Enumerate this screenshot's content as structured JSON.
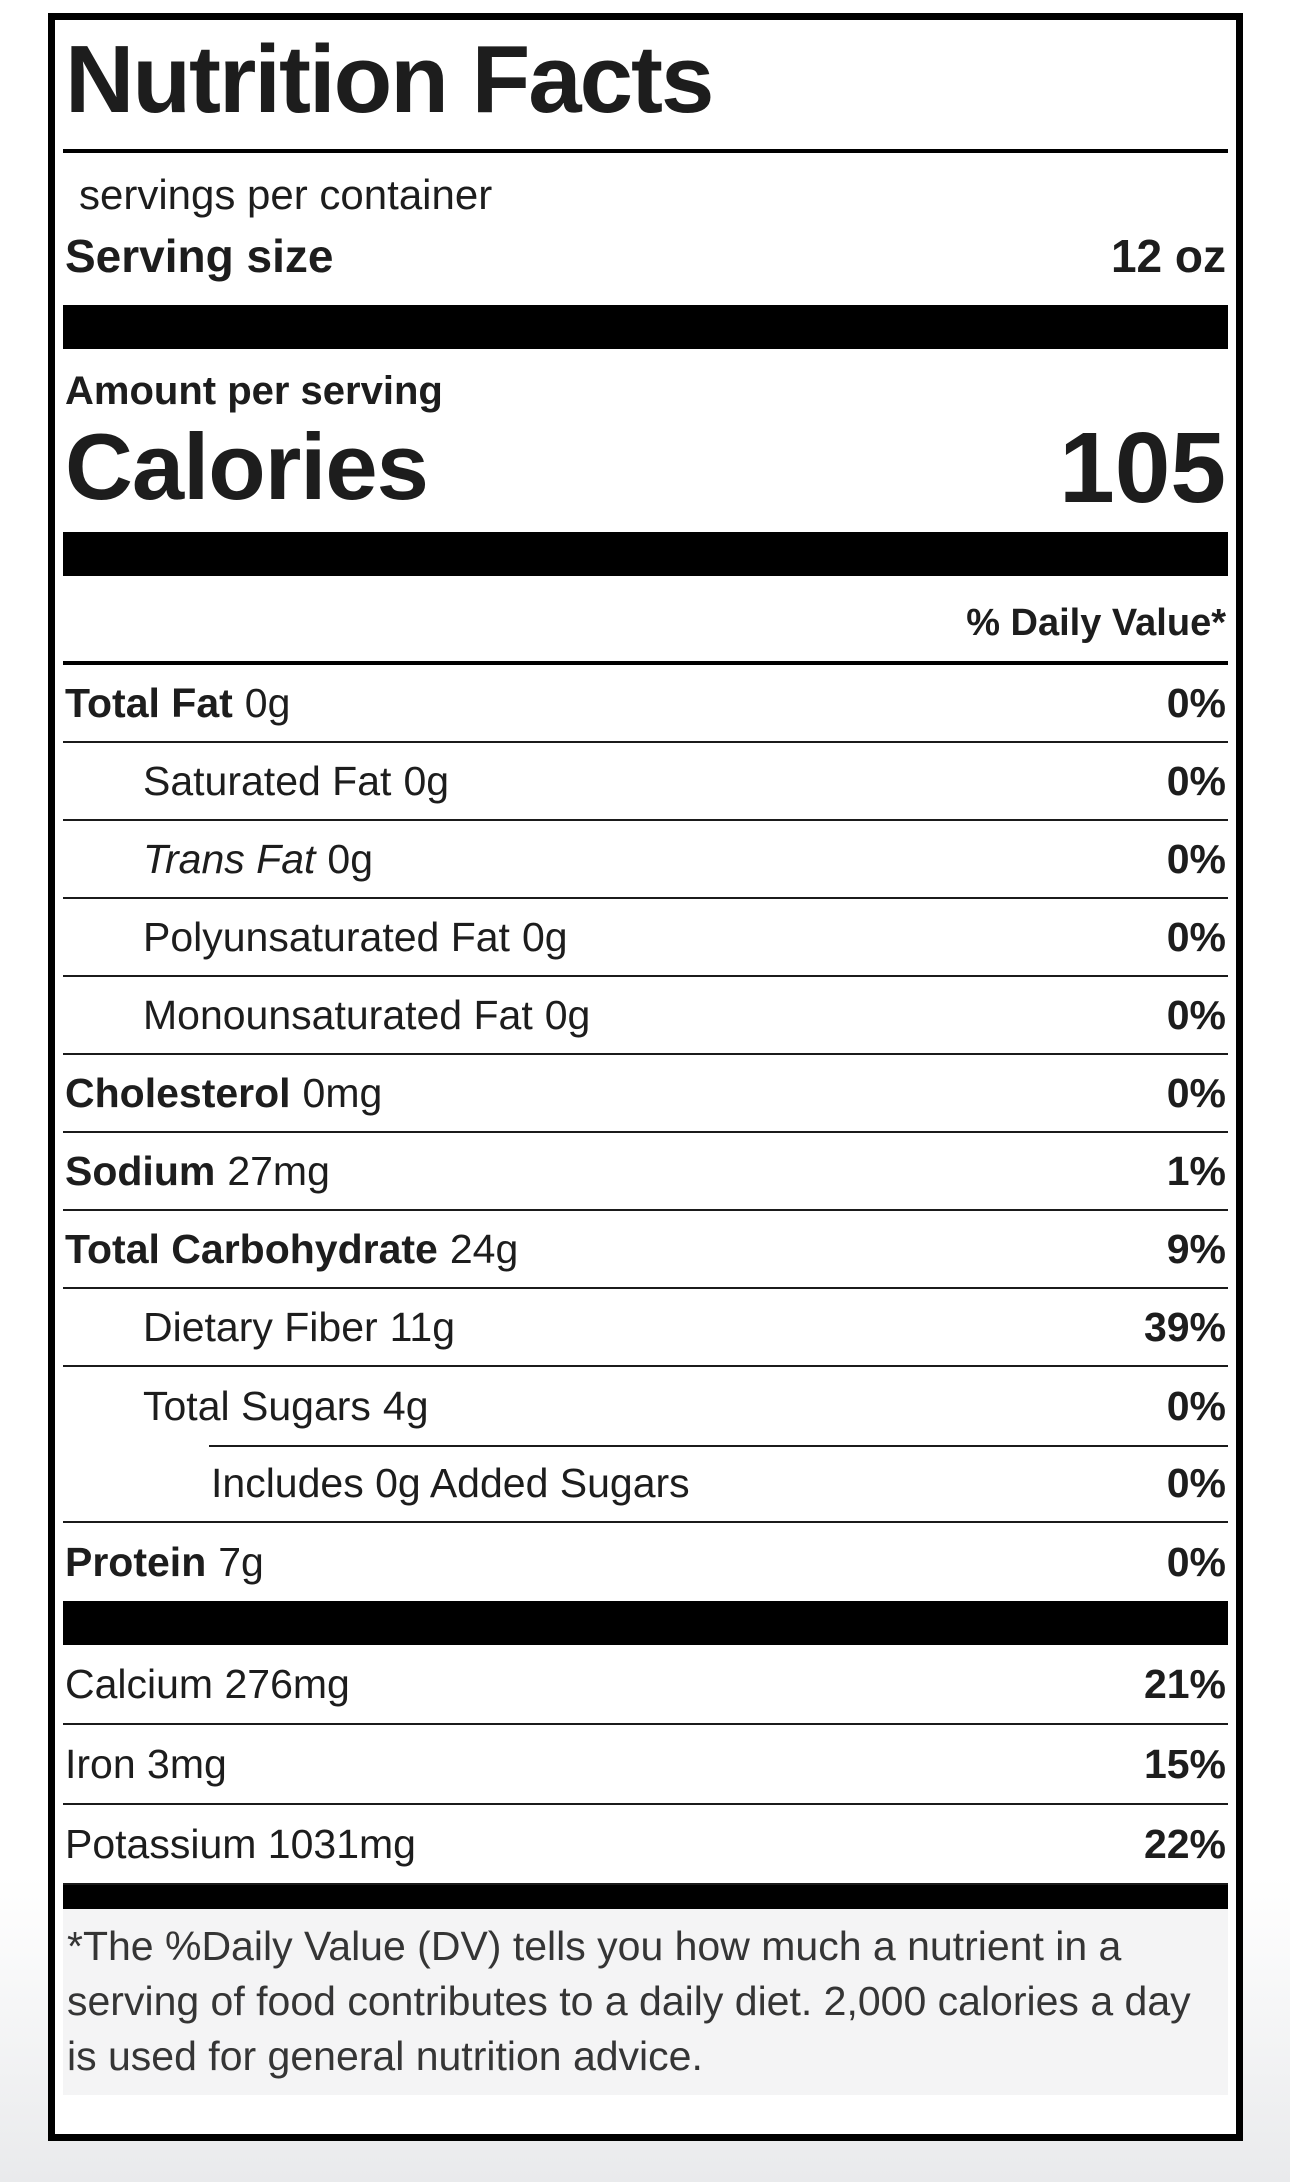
{
  "label": {
    "title": "Nutrition Facts",
    "servings_per_container": "servings per container",
    "serving_size": {
      "label": "Serving size",
      "value": "12 oz"
    },
    "amount_per_serving": "Amount per serving",
    "calories": {
      "label": "Calories",
      "value": "105"
    },
    "daily_value_header": "% Daily Value*",
    "rows": [
      {
        "name": "Total Fat",
        "amount": "0g",
        "dv": "0%"
      },
      {
        "name": "Saturated Fat",
        "amount": "0g",
        "dv": "0%"
      },
      {
        "name": "Trans Fat",
        "amount": "0g",
        "dv": "0%"
      },
      {
        "name": "Polyunsaturated Fat",
        "amount": "0g",
        "dv": "0%"
      },
      {
        "name": "Monounsaturated Fat",
        "amount": "0g",
        "dv": "0%"
      },
      {
        "name": "Cholesterol",
        "amount": "0mg",
        "dv": "0%"
      },
      {
        "name": "Sodium",
        "amount": "27mg",
        "dv": "1%"
      },
      {
        "name": "Total Carbohydrate",
        "amount": "24g",
        "dv": "9%"
      },
      {
        "name": "Dietary Fiber",
        "amount": "11g",
        "dv": "39%"
      },
      {
        "name": "Total Sugars",
        "amount": "4g",
        "dv": "0%"
      },
      {
        "name": "Includes 0g Added Sugars",
        "amount": "",
        "dv": "0%"
      },
      {
        "name": "Protein",
        "amount": "7g",
        "dv": "0%"
      }
    ],
    "micronutrients": [
      {
        "name": "Calcium 276mg",
        "dv": "21%"
      },
      {
        "name": "Iron 3mg",
        "dv": "15%"
      },
      {
        "name": "Potassium 1031mg",
        "dv": "22%"
      }
    ],
    "footnote": "*The %Daily Value (DV) tells you how much a nutrient in a serving of food contributes to a daily diet. 2,000 calories a day is used for general nutrition advice.",
    "colors": {
      "text": "#1d1d1d",
      "border": "#000000",
      "footnote_bg": "#f4f4f5"
    }
  }
}
